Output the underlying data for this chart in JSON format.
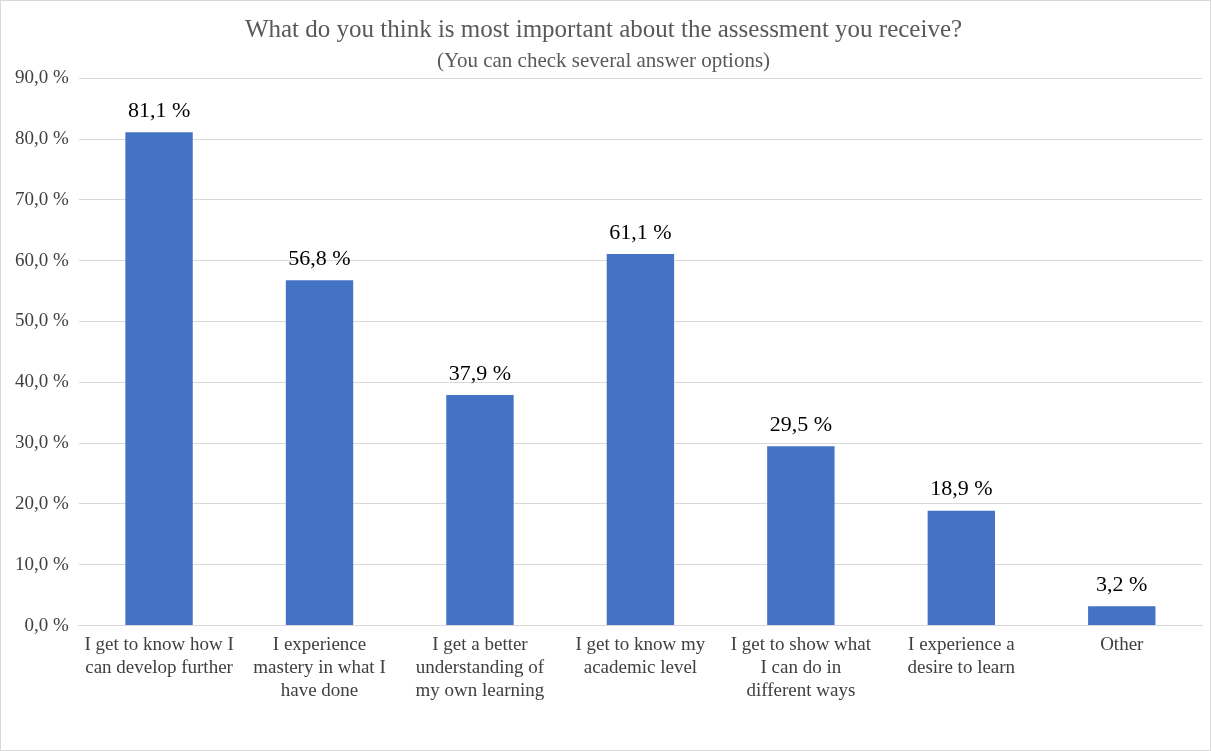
{
  "chart_data": {
    "type": "bar",
    "title": "What do you think is most important about the assessment you receive?",
    "subtitle": "(You can check several answer options)",
    "categories": [
      "I get to know how I can develop further",
      "I experience mastery in what I have done",
      "I get a better understanding of my own learning",
      "I get to know my academic level",
      "I get to show what I can do in different ways",
      "I experience a desire to learn",
      "Other"
    ],
    "values": [
      81.1,
      56.8,
      37.9,
      61.1,
      29.5,
      18.9,
      3.2
    ],
    "value_labels": [
      "81,1 %",
      "56,8 %",
      "37,9 %",
      "61,1 %",
      "29,5 %",
      "18,9 %",
      "3,2 %"
    ],
    "color": "#4472c4",
    "ylim": [
      0,
      90
    ],
    "yticks": [
      {
        "value": 0,
        "label": "0,0 %"
      },
      {
        "value": 10,
        "label": "10,0 %"
      },
      {
        "value": 20,
        "label": "20,0 %"
      },
      {
        "value": 30,
        "label": "30,0 %"
      },
      {
        "value": 40,
        "label": "40,0 %"
      },
      {
        "value": 50,
        "label": "50,0 %"
      },
      {
        "value": 60,
        "label": "60,0 %"
      },
      {
        "value": 70,
        "label": "70,0 %"
      },
      {
        "value": 80,
        "label": "80,0 %"
      },
      {
        "value": 90,
        "label": "90,0 %"
      }
    ],
    "grid": "y",
    "legend": false
  }
}
